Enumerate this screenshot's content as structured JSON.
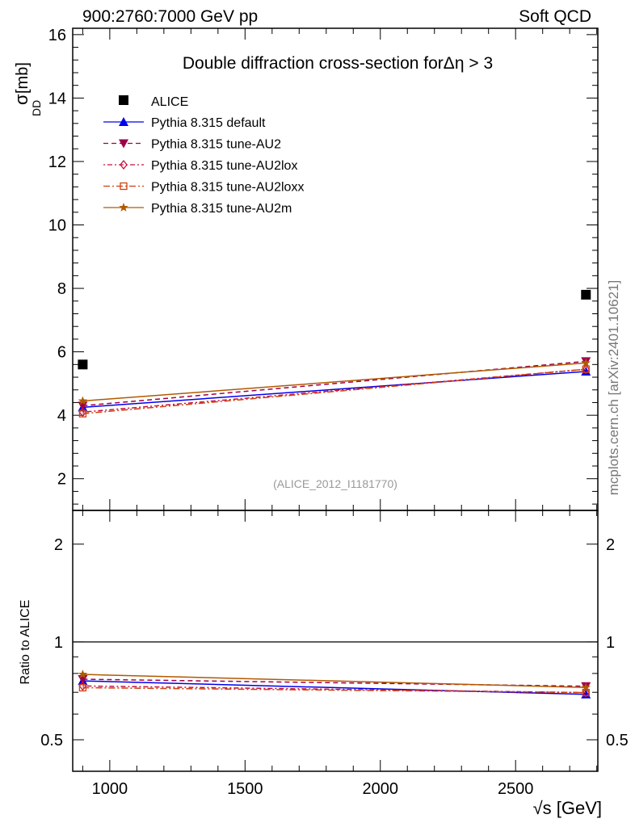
{
  "chart_data": {
    "type": "line",
    "header_left": "900:2760:7000 GeV pp",
    "header_right": "Soft QCD",
    "title": "Double diffraction cross-section forΔη > 3",
    "ylabel_main": "σ",
    "ylabel_sub": "DD",
    "ylabel_unit": "[mb]",
    "ylabel_ratio": "Ratio to ALICE",
    "xlabel": "√s [GeV]",
    "analysis_tag": "(ALICE_2012_I1181770)",
    "watermark": "mcplots.cern.ch [arXiv:2401.10621]",
    "xlim": [
      863,
      2804
    ],
    "ylim": [
      1,
      16.2
    ],
    "ratio_ylim": [
      0.4,
      2.54
    ],
    "ratio_scale": "log",
    "x_ticks": [
      "1000",
      "1500",
      "2000",
      "2500"
    ],
    "y_ticks": [
      "2",
      "4",
      "6",
      "8",
      "10",
      "12",
      "14",
      "16"
    ],
    "ratio_ticks": [
      "0.5",
      "1",
      "2"
    ],
    "x": [
      900,
      2760
    ],
    "reference": {
      "name": "ALICE",
      "values": [
        5.6,
        7.8
      ],
      "color": "#000000",
      "marker": "square"
    },
    "series": [
      {
        "name": "Pythia 8.315 default",
        "values": [
          4.25,
          5.38
        ],
        "color": "#0000ee",
        "dash": "",
        "marker": "triangle-up"
      },
      {
        "name": "Pythia 8.315 tune-AU2",
        "values": [
          4.3,
          5.7
        ],
        "color": "#a0004a",
        "dash": "6,4",
        "marker": "triangle-down"
      },
      {
        "name": "Pythia 8.315 tune-AU2lox",
        "values": [
          4.1,
          5.45
        ],
        "color": "#c8103c",
        "dash": "2,3,6,3",
        "marker": "diamond"
      },
      {
        "name": "Pythia 8.315 tune-AU2loxx",
        "values": [
          4.05,
          5.45
        ],
        "color": "#d04010",
        "dash": "8,3,2,3",
        "marker": "open-square"
      },
      {
        "name": "Pythia 8.315 tune-AU2m",
        "values": [
          4.45,
          5.65
        ],
        "color": "#b05a00",
        "dash": "",
        "marker": "star"
      }
    ]
  }
}
